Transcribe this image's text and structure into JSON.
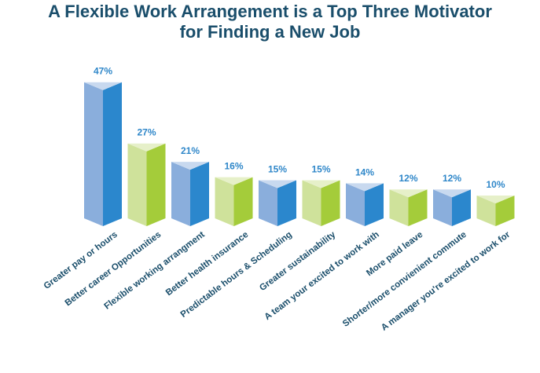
{
  "title_lines": [
    "A Flexible Work Arrangement is a Top Three Motivator",
    "for Finding a New Job"
  ],
  "colors": {
    "blue_left": "#8aaedc",
    "blue_right": "#2b87cd",
    "blue_top": "#c8d9ef",
    "green_left": "#cfe29b",
    "green_right": "#a4cc3a",
    "green_top": "#e6f0c9",
    "value_label": "#2f87c9",
    "text": "#1a4e6b"
  },
  "chart_data": {
    "type": "bar",
    "title": "A Flexible Work Arrangement is a Top Three Motivator for Finding a New Job",
    "categories": [
      "Greater pay or hours",
      "Better career Opportunities",
      "Flexible working arrangment",
      "Better health insurance",
      "Predictable hours & Scheduling",
      "Greater sustainability",
      "A team your excited to work with",
      "More paid leave",
      "Shorter/more convienient commute",
      "A manager you're excited to work for"
    ],
    "values": [
      47,
      27,
      21,
      16,
      15,
      15,
      14,
      12,
      12,
      10
    ],
    "value_labels": [
      "47%",
      "27%",
      "21%",
      "16%",
      "15%",
      "15%",
      "14%",
      "12%",
      "12%",
      "10%"
    ],
    "bar_colors": [
      "blue",
      "green",
      "blue",
      "green",
      "blue",
      "green",
      "blue",
      "green",
      "blue",
      "green"
    ],
    "xlabel": "",
    "ylabel": "",
    "ylim": [
      0,
      50
    ],
    "grid": false,
    "legend": "none"
  }
}
